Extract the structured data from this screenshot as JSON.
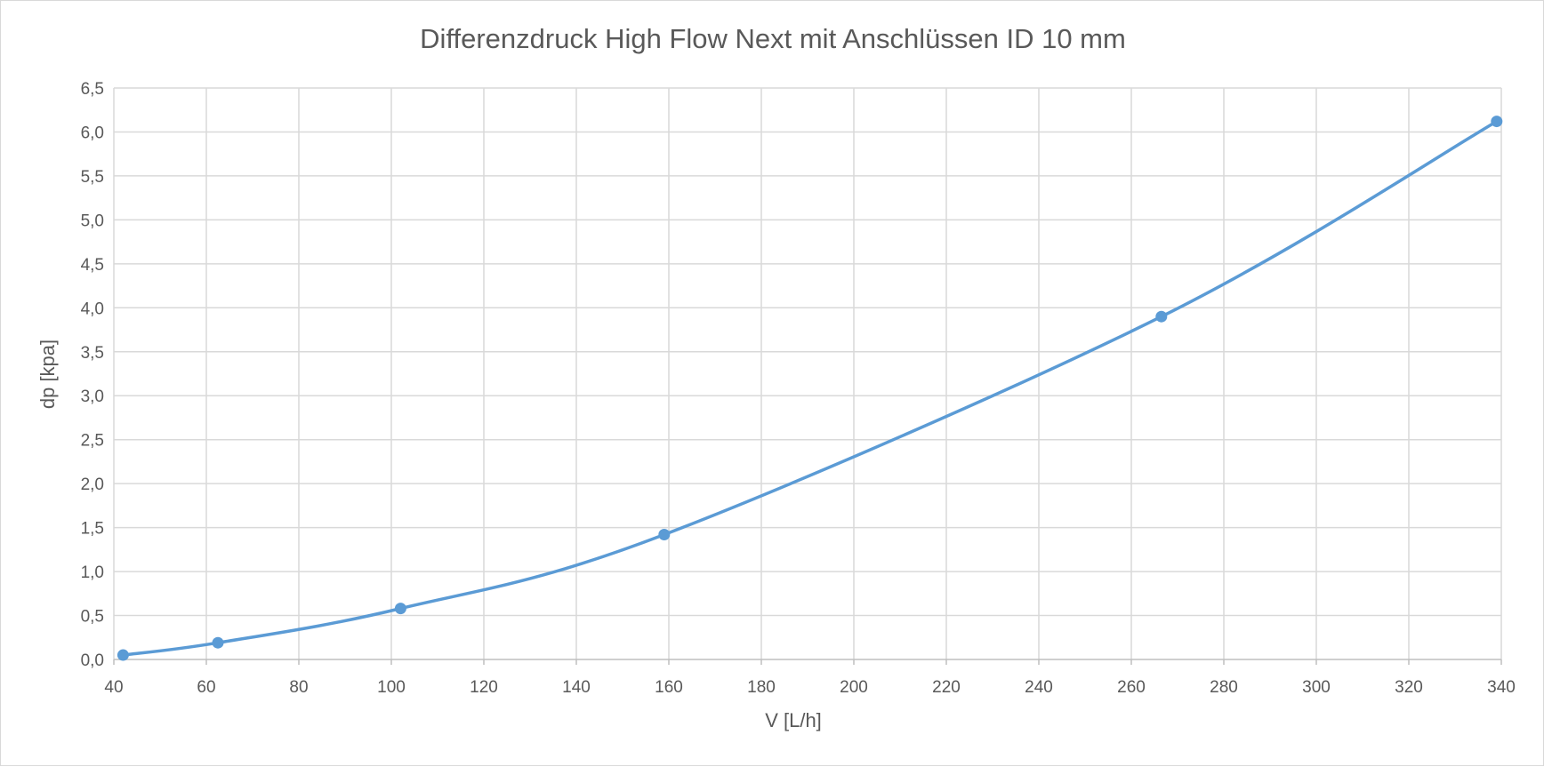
{
  "chart_data": {
    "type": "line",
    "title": "Differenzdruck High Flow Next mit Anschlüssen ID 10 mm",
    "xlabel": "V [L/h]",
    "ylabel": "dp [kpa]",
    "xlim": [
      40,
      340
    ],
    "ylim": [
      0,
      6.5
    ],
    "xticks": [
      40,
      60,
      80,
      100,
      120,
      140,
      160,
      180,
      200,
      220,
      240,
      260,
      280,
      300,
      320,
      340
    ],
    "xtick_labels": [
      "40",
      "60",
      "80",
      "100",
      "120",
      "140",
      "160",
      "180",
      "200",
      "220",
      "240",
      "260",
      "280",
      "300",
      "320",
      "340"
    ],
    "yticks": [
      0,
      0.5,
      1,
      1.5,
      2,
      2.5,
      3,
      3.5,
      4,
      4.5,
      5,
      5.5,
      6,
      6.5
    ],
    "ytick_labels": [
      "0,0",
      "0,5",
      "1,0",
      "1,5",
      "2,0",
      "2,5",
      "3,0",
      "3,5",
      "4,0",
      "4,5",
      "5,0",
      "5,5",
      "6,0",
      "6,5"
    ],
    "grid": true,
    "smooth": true,
    "legend": "none",
    "series": [
      {
        "color": "#5b9bd5",
        "x": [
          42,
          62.5,
          102,
          159,
          266.5,
          339
        ],
        "y": [
          0.05,
          0.19,
          0.58,
          1.42,
          3.9,
          6.12
        ]
      }
    ]
  },
  "colors": {
    "series": "#5b9bd5",
    "grid": "#d9d9d9",
    "text": "#595959",
    "axis": "#bfbfbf"
  }
}
